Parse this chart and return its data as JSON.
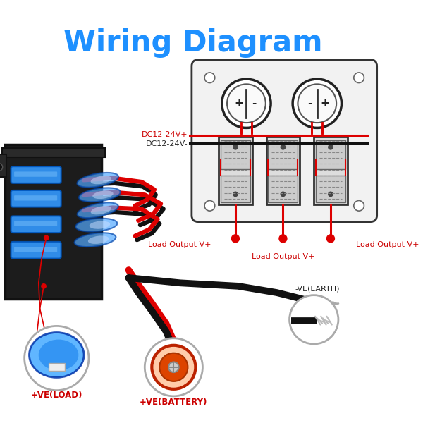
{
  "title": "Wiring Diagram",
  "title_color": "#1E90FF",
  "title_fontsize": 30,
  "bg_color": "#FFFFFF",
  "label_dc_plus": "DC12-24V+",
  "label_dc_minus": "DC12-24V-",
  "label_load1": "Load Output V+",
  "label_load2": "Load Output V+",
  "label_load3": "Load Output V+",
  "label_load_left": "+VE(LOAD)",
  "label_battery": "+VE(BATTERY)",
  "label_earth": "-VE(EARTH)",
  "red_color": "#CC0000",
  "black_color": "#222222",
  "wire_red": "#DD0000",
  "wire_black": "#111111",
  "blue_switch": "#3399FF",
  "blue_dark": "#0055BB",
  "panel_bg": "#f2f2f2",
  "panel_edge": "#333333",
  "left_panel_bg": "#1a1a1a",
  "switch_detail": "#555555"
}
